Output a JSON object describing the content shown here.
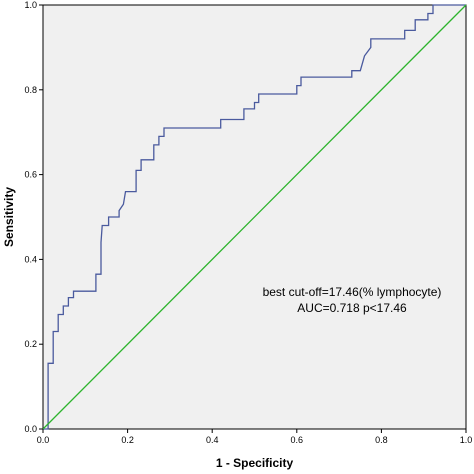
{
  "chart_data": {
    "type": "line",
    "xlabel": "1 - Specificity",
    "ylabel": "Sensitivity",
    "xlim": [
      0,
      1
    ],
    "ylim": [
      0,
      1
    ],
    "x_ticks": [
      0.0,
      0.2,
      0.4,
      0.6,
      0.8,
      1.0
    ],
    "y_ticks": [
      0.0,
      0.2,
      0.4,
      0.6,
      0.8,
      1.0
    ],
    "x_tick_labels": [
      "0.0",
      "0.2",
      "0.4",
      "0.6",
      "0.8",
      "1.0"
    ],
    "y_tick_labels": [
      "0.0",
      "0.2",
      "0.4",
      "0.6",
      "0.8",
      "1.0"
    ],
    "grid": false,
    "background_color": "#f0f0f0",
    "annotations": [
      "best cut-off=17.46(% lymphocyte)",
      "AUC=0.718  p<17.46"
    ],
    "series": [
      {
        "color": "#4a5a9e",
        "points": [
          [
            0.0,
            0.0
          ],
          [
            0.012,
            0.0
          ],
          [
            0.012,
            0.155
          ],
          [
            0.024,
            0.155
          ],
          [
            0.024,
            0.23
          ],
          [
            0.036,
            0.23
          ],
          [
            0.036,
            0.27
          ],
          [
            0.048,
            0.27
          ],
          [
            0.048,
            0.29
          ],
          [
            0.06,
            0.29
          ],
          [
            0.06,
            0.31
          ],
          [
            0.072,
            0.31
          ],
          [
            0.072,
            0.325
          ],
          [
            0.125,
            0.325
          ],
          [
            0.125,
            0.365
          ],
          [
            0.137,
            0.365
          ],
          [
            0.137,
            0.44
          ],
          [
            0.14,
            0.48
          ],
          [
            0.155,
            0.48
          ],
          [
            0.155,
            0.5
          ],
          [
            0.18,
            0.5
          ],
          [
            0.18,
            0.515
          ],
          [
            0.19,
            0.53
          ],
          [
            0.195,
            0.56
          ],
          [
            0.22,
            0.56
          ],
          [
            0.22,
            0.61
          ],
          [
            0.232,
            0.61
          ],
          [
            0.232,
            0.635
          ],
          [
            0.262,
            0.635
          ],
          [
            0.262,
            0.67
          ],
          [
            0.274,
            0.67
          ],
          [
            0.274,
            0.69
          ],
          [
            0.286,
            0.69
          ],
          [
            0.286,
            0.71
          ],
          [
            0.42,
            0.71
          ],
          [
            0.42,
            0.73
          ],
          [
            0.475,
            0.73
          ],
          [
            0.475,
            0.755
          ],
          [
            0.5,
            0.755
          ],
          [
            0.5,
            0.77
          ],
          [
            0.51,
            0.77
          ],
          [
            0.51,
            0.79
          ],
          [
            0.6,
            0.79
          ],
          [
            0.6,
            0.81
          ],
          [
            0.61,
            0.81
          ],
          [
            0.61,
            0.83
          ],
          [
            0.73,
            0.83
          ],
          [
            0.73,
            0.845
          ],
          [
            0.75,
            0.845
          ],
          [
            0.76,
            0.88
          ],
          [
            0.775,
            0.9
          ],
          [
            0.775,
            0.92
          ],
          [
            0.855,
            0.92
          ],
          [
            0.855,
            0.94
          ],
          [
            0.88,
            0.94
          ],
          [
            0.88,
            0.965
          ],
          [
            0.91,
            0.965
          ],
          [
            0.91,
            0.98
          ],
          [
            0.922,
            0.98
          ],
          [
            0.922,
            1.0
          ],
          [
            1.0,
            1.0
          ]
        ]
      },
      {
        "color": "#2db42d",
        "points": [
          [
            0.0,
            0.0
          ],
          [
            1.0,
            1.0
          ]
        ]
      }
    ]
  }
}
